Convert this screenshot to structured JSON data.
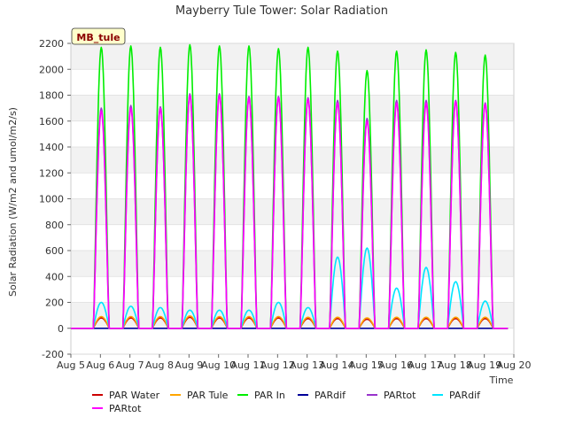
{
  "chart_data": {
    "type": "line",
    "title": "Mayberry Tule Tower: Solar Radiation",
    "xlabel": "Time",
    "ylabel": "Solar Radiation (W/m2 and umol/m2/s)",
    "badge": "MB_tule",
    "ylim": [
      -200,
      2200
    ],
    "yticks": [
      -200,
      0,
      200,
      400,
      600,
      800,
      1000,
      1200,
      1400,
      1600,
      1800,
      2000,
      2200
    ],
    "ytick_labels": [
      "-200",
      "0",
      "200",
      "400",
      "600",
      "800",
      "1000",
      "1200",
      "1400",
      "1600",
      "1800",
      "2000",
      "2200"
    ],
    "xlim": [
      5,
      20
    ],
    "xticks": [
      5,
      6,
      7,
      8,
      9,
      10,
      11,
      12,
      13,
      14,
      15,
      16,
      17,
      18,
      19,
      20
    ],
    "xtick_labels": [
      "Aug 5",
      "Aug 6",
      "Aug 7",
      "Aug 8",
      "Aug 9",
      "Aug 10",
      "Aug 11",
      "Aug 12",
      "Aug 13",
      "Aug 14",
      "Aug 15",
      "Aug 16",
      "Aug 17",
      "Aug 18",
      "Aug 19",
      "Aug 20"
    ],
    "days": [
      "Aug 6",
      "Aug 7",
      "Aug 8",
      "Aug 9",
      "Aug 10",
      "Aug 11",
      "Aug 12",
      "Aug 13",
      "Aug 14",
      "Aug 15",
      "Aug 16",
      "Aug 17",
      "Aug 18",
      "Aug 19"
    ],
    "series": [
      {
        "name": "PAR Water",
        "color": "#cc0000",
        "daily_peak": [
          80,
          80,
          80,
          85,
          80,
          80,
          80,
          75,
          75,
          70,
          75,
          75,
          75,
          75
        ]
      },
      {
        "name": "PAR Tule",
        "color": "#ffa500",
        "daily_peak": [
          90,
          90,
          90,
          95,
          90,
          90,
          90,
          85,
          85,
          80,
          85,
          85,
          85,
          85
        ]
      },
      {
        "name": "PAR In",
        "color": "#00ee00",
        "daily_peak": [
          2170,
          2180,
          2170,
          2190,
          2180,
          2180,
          2160,
          2170,
          2140,
          1990,
          2140,
          2150,
          2130,
          2110
        ]
      },
      {
        "name": "PARdif",
        "color": "#000099",
        "daily_peak": [
          0,
          0,
          0,
          0,
          0,
          0,
          0,
          0,
          0,
          0,
          0,
          0,
          0,
          0
        ]
      },
      {
        "name": "PARtot",
        "color": "#9933cc",
        "daily_peak": [
          1700,
          1720,
          1710,
          1810,
          1810,
          1790,
          1790,
          1780,
          1760,
          1620,
          1760,
          1760,
          1760,
          1740
        ]
      },
      {
        "name": "PARdif",
        "color": "#00e5ff",
        "daily_peak": [
          200,
          170,
          160,
          140,
          140,
          140,
          200,
          160,
          550,
          620,
          310,
          470,
          360,
          210
        ]
      },
      {
        "name": "PARtot",
        "color": "#ff00ff",
        "daily_peak": [
          1680,
          1700,
          1700,
          1800,
          1800,
          1780,
          1780,
          1770,
          1740,
          1600,
          1740,
          1740,
          1750,
          1730
        ]
      }
    ]
  }
}
